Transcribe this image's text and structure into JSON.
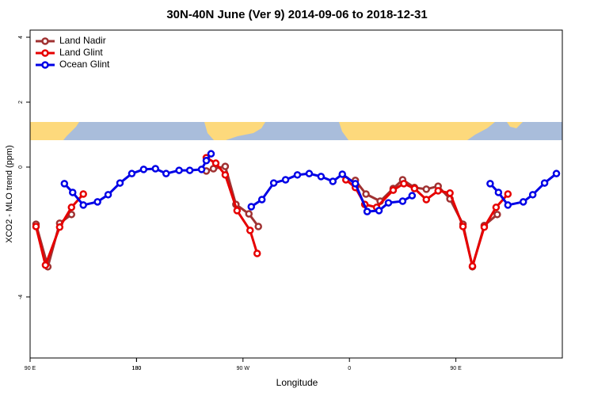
{
  "chart_data": {
    "type": "line",
    "title": "30N-40N June (Ver 9)   2014-09-06 to 2018-12-31",
    "x_label": "Longitude",
    "y_label": "XCO2 - MLO trend (ppm)",
    "xlim": [
      90,
      540
    ],
    "xticks": [
      {
        "value": 90,
        "label": "90 E"
      },
      180,
      {
        "value": 270,
        "label": "90 W"
      },
      {
        "value": 360,
        "label": "0"
      },
      {
        "value": 450,
        "label": "90 E"
      },
      180
    ],
    "ylim": [
      -5.88,
      4.22
    ],
    "yticks": [
      -4,
      0,
      2,
      4
    ],
    "legend": "topleft",
    "series": [
      {
        "name": "Land Nadir",
        "color": "#a03232",
        "x": [
          95,
          105,
          115,
          125,
          null,
          239,
          245,
          255,
          264,
          275,
          283,
          null,
          365,
          374,
          386,
          397,
          405,
          415,
          425,
          435,
          445,
          456,
          464,
          474,
          485
        ],
        "values": [
          -1.76,
          -3.07,
          -1.73,
          -1.46,
          null,
          -0.12,
          -0.05,
          0.02,
          -1.15,
          -1.44,
          -1.83,
          null,
          -0.41,
          -0.83,
          -1.05,
          -0.66,
          -0.39,
          -0.63,
          -0.68,
          -0.59,
          -0.98,
          -1.76,
          -3.07,
          -1.8,
          -1.46
        ]
      },
      {
        "name": "Land Glint",
        "color": "#e60000",
        "x": [
          95,
          103,
          115,
          125,
          135,
          null,
          239,
          247,
          255,
          265,
          276,
          282,
          null,
          357,
          365,
          373,
          383,
          397,
          406,
          415,
          425,
          435,
          445,
          456,
          464,
          474,
          484,
          494
        ],
        "values": [
          -1.83,
          -3.02,
          -1.85,
          -1.24,
          -0.83,
          null,
          0.29,
          0.12,
          -0.24,
          -1.34,
          -1.95,
          -2.66,
          null,
          -0.39,
          -0.63,
          -1.15,
          -1.24,
          -0.71,
          -0.51,
          -0.66,
          -1.0,
          -0.73,
          -0.8,
          -1.83,
          -3.05,
          -1.85,
          -1.24,
          -0.83
        ]
      },
      {
        "name": "Ocean Glint",
        "color": "#0000e6",
        "x": [
          119,
          126,
          135,
          147,
          156,
          166,
          176,
          186,
          196,
          205,
          216,
          225,
          235,
          239,
          243,
          null,
          277,
          286,
          296,
          306,
          316,
          326,
          336,
          346,
          354,
          365,
          375,
          385,
          393,
          405,
          413,
          null,
          479,
          486,
          494,
          507,
          515,
          525,
          535
        ],
        "values": [
          -0.51,
          -0.78,
          -1.17,
          -1.07,
          -0.85,
          -0.49,
          -0.2,
          -0.07,
          -0.05,
          -0.2,
          -0.1,
          -0.1,
          -0.07,
          0.2,
          0.41,
          null,
          -1.22,
          -1.0,
          -0.49,
          -0.39,
          -0.24,
          -0.2,
          -0.29,
          -0.44,
          -0.22,
          -0.51,
          -1.37,
          -1.34,
          -1.1,
          -1.05,
          -0.88,
          null,
          -0.51,
          -0.78,
          -1.17,
          -1.07,
          -0.85,
          -0.49,
          -0.2
        ]
      }
    ]
  }
}
